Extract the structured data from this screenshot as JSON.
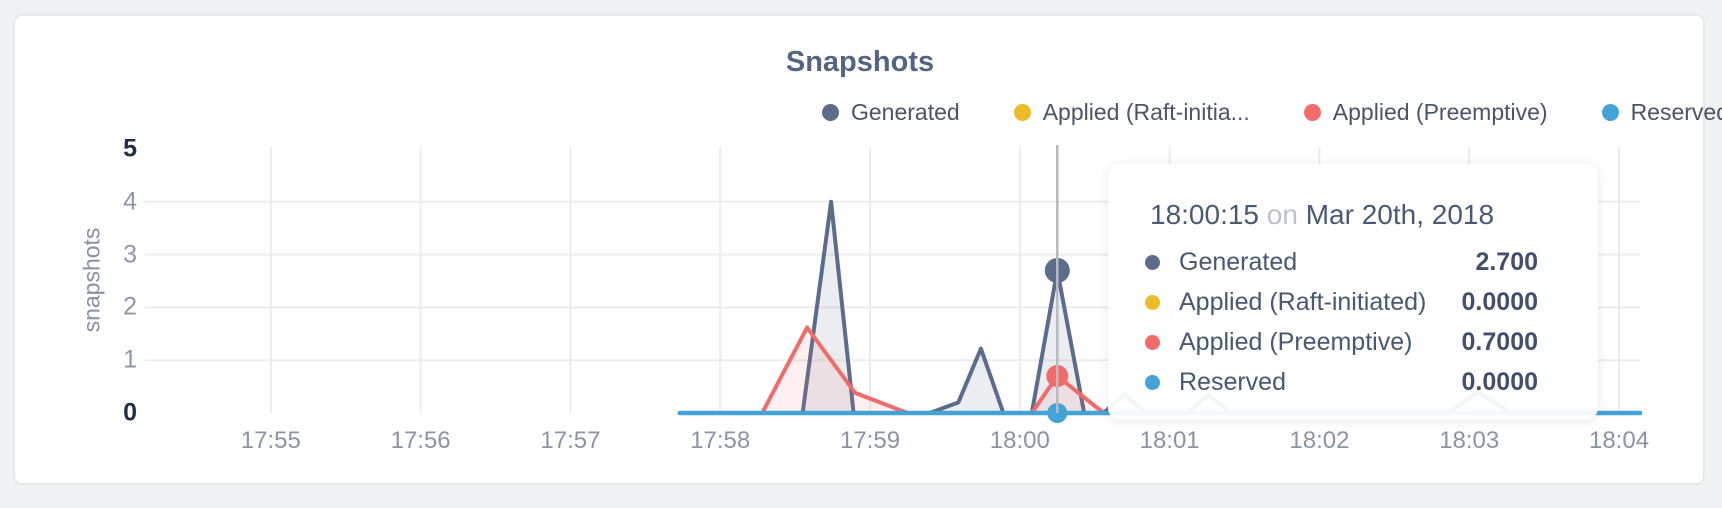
{
  "card": {
    "title": "Snapshots"
  },
  "legend": {
    "items": [
      {
        "label": "Generated",
        "color": "#5c6c8c"
      },
      {
        "label": "Applied (Raft-initia...",
        "color": "#efba2a"
      },
      {
        "label": "Applied (Preemptive)",
        "color": "#f26b6b"
      },
      {
        "label": "Reserved",
        "color": "#44a3d6"
      }
    ]
  },
  "tooltip": {
    "time": "18:00:15",
    "connector": "on",
    "date": "Mar 20th, 2018",
    "rows": [
      {
        "label": "Generated",
        "value": "2.700",
        "color": "#5c6c8c"
      },
      {
        "label": "Applied (Raft-initiated)",
        "value": "0.0000",
        "color": "#efba2a"
      },
      {
        "label": "Applied (Preemptive)",
        "value": "0.7000",
        "color": "#f26b6b"
      },
      {
        "label": "Reserved",
        "value": "0.0000",
        "color": "#44a3d6"
      }
    ]
  },
  "chart_data": {
    "type": "area",
    "title": "Snapshots",
    "xlabel": "",
    "ylabel": "snapshots",
    "legend_position": "top-right",
    "grid": true,
    "x_domain_minutes_from_1755": [
      -0.84,
      9.14
    ],
    "y_domain": [
      0,
      5
    ],
    "x_ticks": [
      {
        "label": "17:55",
        "minutes": 0
      },
      {
        "label": "17:56",
        "minutes": 1
      },
      {
        "label": "17:57",
        "minutes": 2
      },
      {
        "label": "17:58",
        "minutes": 3
      },
      {
        "label": "17:59",
        "minutes": 4
      },
      {
        "label": "18:00",
        "minutes": 5
      },
      {
        "label": "18:01",
        "minutes": 6
      },
      {
        "label": "18:02",
        "minutes": 7
      },
      {
        "label": "18:03",
        "minutes": 8
      },
      {
        "label": "18:04",
        "minutes": 9
      }
    ],
    "y_ticks": [
      {
        "label": "5",
        "value": 5,
        "emphasis": true
      },
      {
        "label": "4",
        "value": 4,
        "emphasis": false
      },
      {
        "label": "3",
        "value": 3,
        "emphasis": false
      },
      {
        "label": "2",
        "value": 2,
        "emphasis": false
      },
      {
        "label": "1",
        "value": 1,
        "emphasis": false
      },
      {
        "label": "0",
        "value": 0,
        "emphasis": true
      }
    ],
    "y_gridline_values": [
      1,
      2,
      3,
      4
    ],
    "series": [
      {
        "name": "Generated",
        "color": "#5c6c8c",
        "fill": "rgba(92,108,140,0.12)",
        "stroke_width": 4,
        "points_min_val": [
          [
            2.73,
            0
          ],
          [
            3.55,
            0
          ],
          [
            3.74,
            4.0
          ],
          [
            3.89,
            0
          ],
          [
            4.4,
            0
          ],
          [
            4.59,
            0.2
          ],
          [
            4.74,
            1.22
          ],
          [
            4.89,
            0
          ],
          [
            5.08,
            0
          ],
          [
            5.25,
            2.7
          ],
          [
            5.43,
            0
          ],
          [
            5.56,
            0
          ],
          [
            5.7,
            0.36
          ],
          [
            5.84,
            0
          ],
          [
            6.11,
            0
          ],
          [
            6.26,
            0.34
          ],
          [
            6.41,
            0
          ],
          [
            7.86,
            0
          ],
          [
            8.06,
            0.4
          ],
          [
            8.28,
            0
          ],
          [
            9.14,
            0
          ]
        ]
      },
      {
        "name": "Applied (Raft-initiated)",
        "color": "#efba2a",
        "fill": "none",
        "stroke_width": 3,
        "points_min_val": [
          [
            2.73,
            0
          ],
          [
            9.14,
            0
          ]
        ]
      },
      {
        "name": "Applied (Preemptive)",
        "color": "#f26b6b",
        "fill": "rgba(242,107,107,0.10)",
        "stroke_width": 4,
        "points_min_val": [
          [
            2.73,
            0
          ],
          [
            3.28,
            0
          ],
          [
            3.58,
            1.62
          ],
          [
            3.9,
            0.38
          ],
          [
            4.25,
            0
          ],
          [
            5.08,
            0
          ],
          [
            5.25,
            0.7
          ],
          [
            5.56,
            0
          ],
          [
            9.14,
            0
          ]
        ]
      },
      {
        "name": "Reserved",
        "color": "#44a3d6",
        "fill": "none",
        "stroke_width": 4.5,
        "points_min_val": [
          [
            2.73,
            0
          ],
          [
            9.14,
            0
          ]
        ]
      }
    ],
    "hover": {
      "time_label": "18:00:15",
      "x_minutes": 5.25,
      "crosshair_color": "#b8babd",
      "dots": [
        {
          "series": "Applied (Raft-initiated)",
          "value": 0,
          "r": 8
        },
        {
          "series": "Reserved",
          "value": 0,
          "r": 10
        },
        {
          "series": "Applied (Preemptive)",
          "value": 0.7,
          "r": 11
        },
        {
          "series": "Generated",
          "value": 2.7,
          "r": 12.5
        }
      ]
    }
  }
}
